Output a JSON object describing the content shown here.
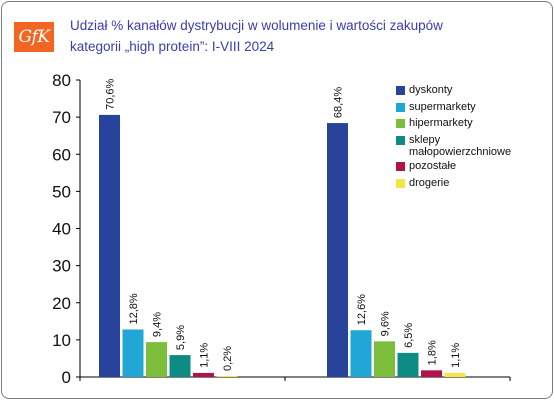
{
  "logo": {
    "text": "GfK",
    "color": "#f26522"
  },
  "title_line1": "Udział % kanałów dystrybucji w wolumenie i wartości zakupów",
  "title_line2": "kategorii „high protein”: I-VIII 2024",
  "chart_data": {
    "type": "bar",
    "title": "Udział % kanałów dystrybucji w wolumenie i wartości zakupów kategorii „high protein”: I-VIII 2024",
    "xlabel": "",
    "ylabel": "",
    "ylim": [
      0,
      80
    ],
    "yticks": [
      0,
      10,
      20,
      30,
      40,
      50,
      60,
      70,
      80
    ],
    "grid": false,
    "legend_position": "top-right",
    "categories": [
      "",
      ""
    ],
    "series": [
      {
        "name": "dyskonty",
        "color": "#27439b",
        "values": [
          70.6,
          68.4
        ],
        "labels": [
          "70,6%",
          "68,4%"
        ]
      },
      {
        "name": "supermarkety",
        "color": "#20a7d6",
        "values": [
          12.8,
          12.6
        ],
        "labels": [
          "12,8%",
          "12,6%"
        ]
      },
      {
        "name": "hipermarkety",
        "color": "#7cbd3c",
        "values": [
          9.4,
          9.6
        ],
        "labels": [
          "9,4%",
          "9,6%"
        ]
      },
      {
        "name": "sklepy małopowierzchniowe",
        "color": "#0e8b83",
        "values": [
          5.9,
          6.5
        ],
        "labels": [
          "5,9%",
          "6,5%"
        ]
      },
      {
        "name": "pozostałe",
        "color": "#b3134b",
        "values": [
          1.1,
          1.8
        ],
        "labels": [
          "1,1%",
          "1,8%"
        ]
      },
      {
        "name": "drogerie",
        "color": "#f7e34a",
        "values": [
          0.2,
          1.1
        ],
        "labels": [
          "0,2%",
          "1,1%"
        ]
      }
    ]
  },
  "legend": [
    {
      "label": "dyskonty",
      "color": "#27439b"
    },
    {
      "label": "supermarkety",
      "color": "#20a7d6"
    },
    {
      "label": "hipermarkety",
      "color": "#7cbd3c"
    },
    {
      "label_line1": "sklepy",
      "label_line2": "małopowierzchniowe",
      "color": "#0e8b83"
    },
    {
      "label": "pozostałe",
      "color": "#b3134b"
    },
    {
      "label": "drogerie",
      "color": "#f7e34a"
    }
  ]
}
